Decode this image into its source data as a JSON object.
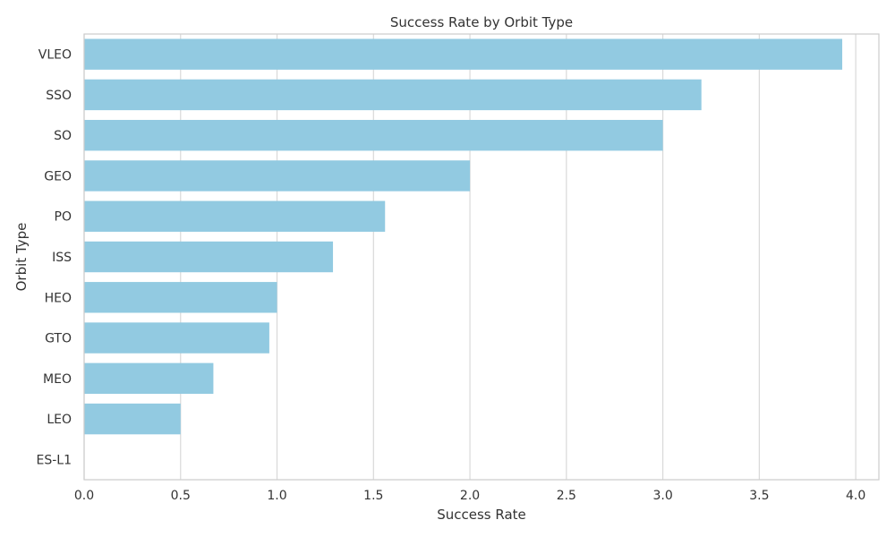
{
  "chart_data": {
    "type": "bar",
    "orientation": "horizontal",
    "title": "Success Rate by Orbit Type",
    "xlabel": "Success Rate",
    "ylabel": "Orbit Type",
    "xlim": [
      0.0,
      4.12
    ],
    "xticks": [
      "0.0",
      "0.5",
      "1.0",
      "1.5",
      "2.0",
      "2.5",
      "3.0",
      "3.5",
      "4.0"
    ],
    "grid": true,
    "categories": [
      "VLEO",
      "SSO",
      "SO",
      "GEO",
      "PO",
      "ISS",
      "HEO",
      "GTO",
      "MEO",
      "LEO",
      "ES-L1"
    ],
    "values": [
      3.93,
      3.2,
      3.0,
      2.0,
      1.56,
      1.29,
      1.0,
      0.96,
      0.67,
      0.5,
      0.0
    ],
    "bar_color": "#92cae1",
    "grid_color": "#d9d9d9",
    "text_color": "#333333"
  }
}
